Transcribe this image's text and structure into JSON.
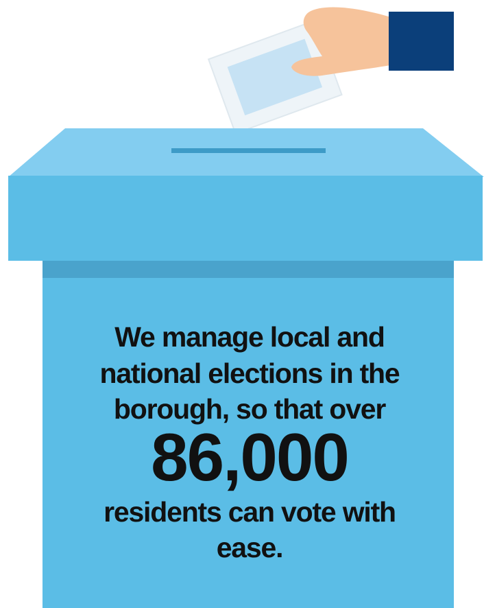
{
  "intro_lines": [
    "We manage local and",
    "national elections in the",
    "borough, so that over"
  ],
  "figure": "86,000",
  "outro_lines": [
    "residents can vote with",
    "ease."
  ]
}
